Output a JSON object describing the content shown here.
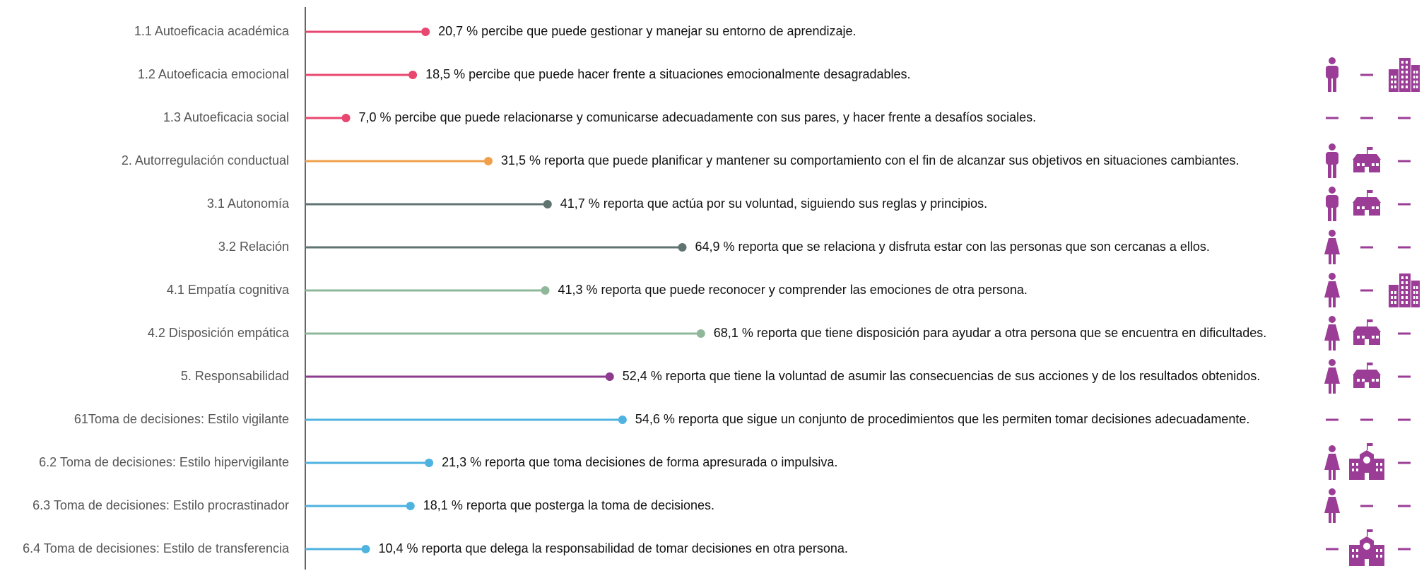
{
  "chart_data": {
    "type": "lollipop",
    "categories": [
      "1.1 Autoeficacia académica",
      "1.2 Autoeficacia emocional",
      "1.3 Autoeficacia social",
      "2. Autorregulación conductual",
      "3.1 Autonomía",
      "3.2 Relación",
      "4.1 Empatía cognitiva",
      "4.2 Disposición empática",
      "5. Responsabilidad",
      "61Toma de decisiones: Estilo vigilante",
      "6.2 Toma de decisiones: Estilo hipervigilante",
      "6.3 Toma de decisiones: Estilo procrastinador",
      "6.4 Toma de decisiones: Estilo de transferencia"
    ],
    "values": [
      20.7,
      18.5,
      7.0,
      31.5,
      41.7,
      64.9,
      41.3,
      68.1,
      52.4,
      54.6,
      21.3,
      18.1,
      10.4
    ],
    "value_labels": [
      "20,7 % percibe que puede gestionar y manejar su entorno de aprendizaje.",
      "18,5 % percibe que puede hacer frente a situaciones emocionalmente desagradables.",
      "7,0 % percibe que puede relacionarse y comunicarse adecuadamente con sus pares, y hacer frente a desafíos sociales.",
      "31,5 % reporta que puede planificar y mantener su comportamiento con el fin de alcanzar sus objetivos en situaciones cambiantes.",
      "41,7 % reporta que actúa por su voluntad, siguiendo sus reglas y principios.",
      "64,9 % reporta que se relaciona y disfruta estar con las personas que son cercanas a ellos.",
      "41,3 % reporta que puede reconocer y comprender las emociones de otra persona.",
      "68,1 % reporta que tiene disposición para ayudar a otra persona que se encuentra en dificultades.",
      "52,4 % reporta que tiene la voluntad de asumir las consecuencias de sus acciones y de los resultados obtenidos.",
      "54,6 % reporta que sigue un conjunto de procedimientos que les permiten tomar decisiones adecuadamente.",
      "21,3 % reporta que toma decisiones de forma apresurada o impulsiva.",
      "18,1 % reporta que posterga la toma de decisiones.",
      "10,4 % reporta que delega la responsabilidad de tomar decisiones en otra persona."
    ],
    "colors": [
      "#e8476f",
      "#e8476f",
      "#e8476f",
      "#f0a04b",
      "#5f7370",
      "#5f7370",
      "#8fb89a",
      "#8fb89a",
      "#8e3a8e",
      "#4fb3e0",
      "#4fb3e0",
      "#4fb3e0",
      "#4fb3e0"
    ],
    "xlim": [
      0,
      100
    ]
  }
}
